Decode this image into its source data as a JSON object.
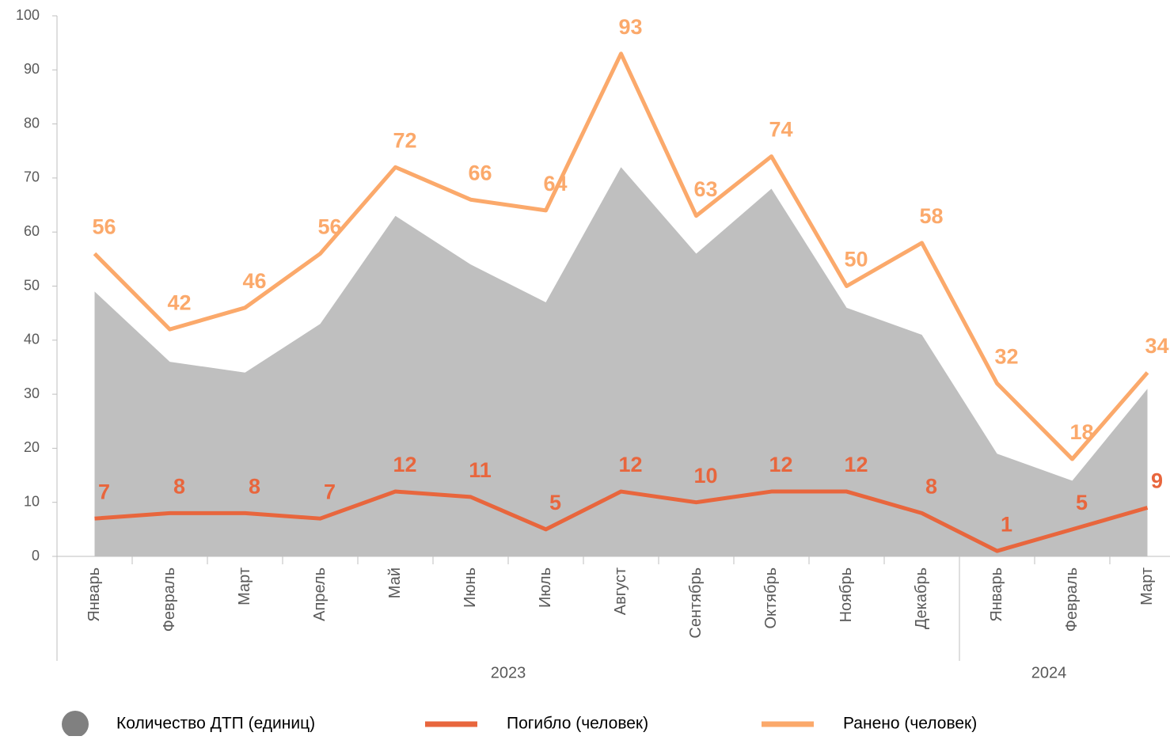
{
  "chart_data": {
    "type": "area-line",
    "categories": [
      "Январь",
      "Февраль",
      "Март",
      "Апрель",
      "Май",
      "Июнь",
      "Июль",
      "Август",
      "Сентябрь",
      "Октябрь",
      "Ноябрь",
      "Декабрь",
      "Январь",
      "Февраль",
      "Март"
    ],
    "groups": [
      {
        "label": "2023",
        "span": 12
      },
      {
        "label": "2024",
        "span": 3
      }
    ],
    "series": [
      {
        "name": "Количество ДТП (единиц)",
        "kind": "area",
        "color": "#bfbfbf",
        "values": [
          49,
          36,
          34,
          43,
          63,
          54,
          47,
          72,
          56,
          68,
          46,
          41,
          19,
          14,
          31
        ]
      },
      {
        "name": "Погибло (человек)",
        "kind": "line",
        "color": "#e8663d",
        "values": [
          7,
          8,
          8,
          7,
          12,
          11,
          5,
          12,
          10,
          12,
          12,
          8,
          1,
          5,
          9
        ]
      },
      {
        "name": "Ранено (человек)",
        "kind": "line",
        "color": "#fba96b",
        "values": [
          56,
          42,
          46,
          56,
          72,
          66,
          64,
          93,
          63,
          74,
          50,
          58,
          32,
          18,
          34
        ]
      }
    ],
    "ylim": [
      0,
      100
    ],
    "yticks": [
      0,
      10,
      20,
      30,
      40,
      50,
      60,
      70,
      80,
      90,
      100
    ]
  }
}
